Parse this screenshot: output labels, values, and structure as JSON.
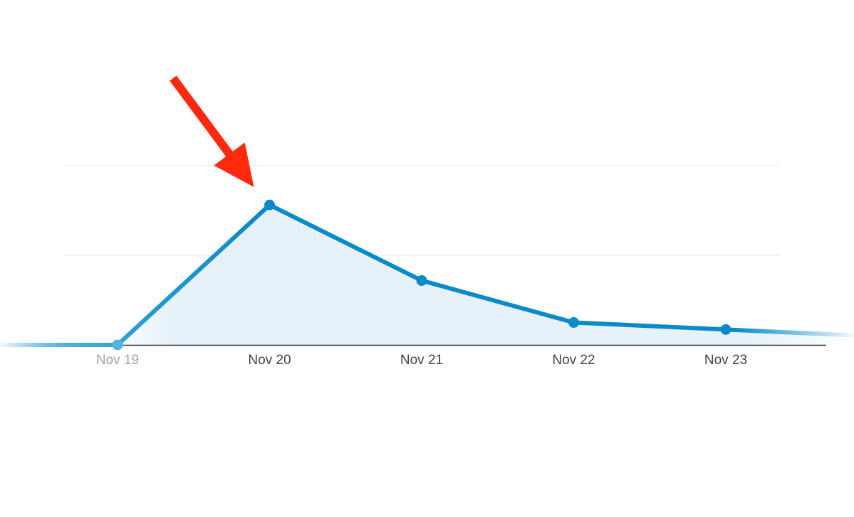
{
  "chart_data": {
    "type": "area",
    "title": "",
    "xlabel": "",
    "ylabel": "",
    "x": [
      "Nov 19",
      "Nov 20",
      "Nov 21",
      "Nov 22",
      "Nov 23"
    ],
    "series": [
      {
        "values": [
          0,
          100,
          46,
          16,
          11
        ]
      }
    ],
    "ylim": [
      0,
      128
    ],
    "grid": true,
    "legend": "none",
    "annotations": [
      {
        "type": "arrow",
        "target_x": "Nov 20",
        "description": "pointing at peak"
      }
    ],
    "colors": {
      "line": "#0a8ac8",
      "fill": "#e6f1f9",
      "grid": "#e3e3e3",
      "baseline": "#333333",
      "arrow": "#ff2a0d",
      "tick_first": "#a3a3a3",
      "tick": "#444444"
    }
  }
}
